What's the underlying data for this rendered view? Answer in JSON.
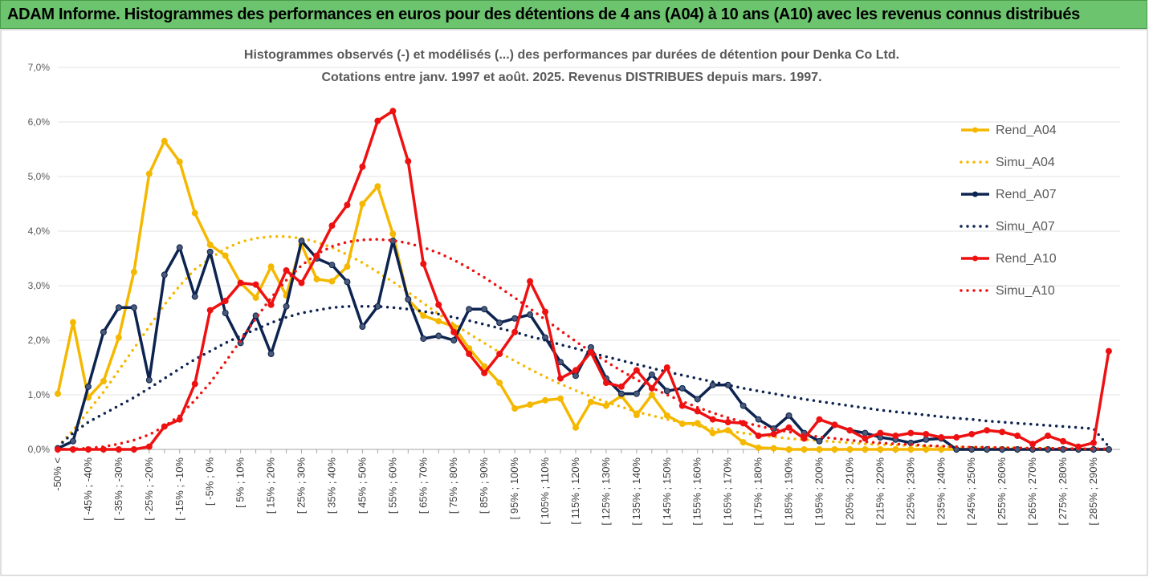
{
  "chart_data": {
    "type": "line",
    "title": "ADAM Informe. Histogrammes des performances en euros pour des détentions de 4 ans (A04) à 10 ans (A10) avec les revenus connus distribués",
    "subtitle": [
      "Histogrammes observés (-) et modélisés (...) des performances par durées de détention pour Denka Co Ltd.",
      "Cotations entre janv. 1997 et août. 2025. Revenus DISTRIBUES depuis mars. 1997."
    ],
    "categories": [
      "-50% <",
      null,
      "[ -45% ; -40%",
      null,
      "[ -35% ; -30%",
      null,
      "[ -25% ; -20%",
      null,
      "[ -15% ; -10%",
      null,
      "[ -5% ; 0%",
      null,
      "[ 5% ; 10%",
      null,
      "[ 15% ; 20%",
      null,
      "[ 25% ; 30%",
      null,
      "[ 35% ; 40%",
      null,
      "[ 45% ; 50%",
      null,
      "[ 55% ; 60%",
      null,
      "[ 65% ; 70%",
      null,
      "[ 75% ; 80%",
      null,
      "[ 85% ; 90%",
      null,
      "[ 95% ; 100%",
      null,
      "[ 105% ; 110%",
      null,
      "[ 115% ; 120%",
      null,
      "[ 125% ; 130%",
      null,
      "[ 135% ; 140%",
      null,
      "[ 145% ; 150%",
      null,
      "[ 155% ; 160%",
      null,
      "[ 165% ; 170%",
      null,
      "[ 175% ; 180%",
      null,
      "[ 185% ; 190%",
      null,
      "[ 195% ; 200%",
      null,
      "[ 205% ; 210%",
      null,
      "[ 215% ; 220%",
      null,
      "[ 225% ; 230%",
      null,
      "[ 235% ; 240%",
      null,
      "[ 245% ; 250%",
      null,
      "[ 255% ; 260%",
      null,
      "[ 265% ; 270%",
      null,
      "[ 275% ; 280%",
      null,
      "[ 285% ; 290%",
      null
    ],
    "ylim": [
      0,
      7
    ],
    "yticks": [
      {
        "value": 0,
        "label": "0,0%"
      },
      {
        "value": 1,
        "label": "1,0%"
      },
      {
        "value": 2,
        "label": "2,0%"
      },
      {
        "value": 3,
        "label": "3,0%"
      },
      {
        "value": 4,
        "label": "4,0%"
      },
      {
        "value": 5,
        "label": "5,0%"
      },
      {
        "value": 6,
        "label": "6,0%"
      },
      {
        "value": 7,
        "label": "7,0%"
      }
    ],
    "grid": true,
    "legend": "right",
    "series": [
      {
        "name": "Rend_A04",
        "color": "#f5b800",
        "style": "solid",
        "markers": true,
        "values": [
          1.02,
          2.33,
          0.95,
          1.25,
          2.05,
          3.25,
          5.05,
          5.65,
          5.27,
          4.33,
          3.75,
          3.55,
          3.05,
          2.78,
          3.35,
          2.82,
          3.75,
          3.12,
          3.08,
          3.35,
          4.5,
          4.82,
          3.95,
          2.75,
          2.45,
          2.35,
          2.25,
          1.85,
          1.52,
          1.22,
          0.75,
          0.82,
          0.9,
          0.93,
          0.4,
          0.87,
          0.8,
          0.98,
          0.63,
          1.0,
          0.62,
          0.47,
          0.48,
          0.3,
          0.35,
          0.13,
          0.03,
          0.02,
          0,
          0,
          0,
          0,
          0,
          0,
          0,
          0,
          0,
          0,
          0,
          0,
          0,
          0,
          0,
          0,
          0,
          0,
          0,
          0,
          0,
          0
        ]
      },
      {
        "name": "Simu_A04",
        "color": "#f5b800",
        "style": "dotted",
        "markers": false,
        "values": [
          0.05,
          0.35,
          0.7,
          1.05,
          1.45,
          1.85,
          2.25,
          2.65,
          3.0,
          3.3,
          3.5,
          3.68,
          3.8,
          3.87,
          3.9,
          3.9,
          3.87,
          3.8,
          3.7,
          3.57,
          3.42,
          3.25,
          3.07,
          2.88,
          2.68,
          2.48,
          2.3,
          2.12,
          1.95,
          1.78,
          1.62,
          1.47,
          1.33,
          1.2,
          1.08,
          0.97,
          0.87,
          0.78,
          0.69,
          0.62,
          0.55,
          0.49,
          0.43,
          0.38,
          0.34,
          0.3,
          0.26,
          0.23,
          0.2,
          0.18,
          0.16,
          0.14,
          0.12,
          0.1,
          0.09,
          0.08,
          0.07,
          0.06,
          0.05,
          0.04,
          0.04,
          0.03,
          0.03,
          0.02,
          0.02,
          0.02,
          0.01,
          0.01,
          0.01,
          0
        ]
      },
      {
        "name": "Rend_A07",
        "color": "#0d2350",
        "style": "solid",
        "markers": true,
        "values": [
          0.02,
          0.15,
          1.15,
          2.15,
          2.6,
          2.6,
          1.27,
          3.2,
          3.7,
          2.8,
          3.62,
          2.5,
          1.95,
          2.45,
          1.75,
          2.62,
          3.82,
          3.5,
          3.38,
          3.07,
          2.25,
          2.62,
          3.82,
          2.75,
          2.03,
          2.08,
          2.0,
          2.57,
          2.57,
          2.32,
          2.4,
          2.47,
          2.05,
          1.6,
          1.35,
          1.87,
          1.3,
          1.02,
          1.02,
          1.37,
          1.07,
          1.12,
          0.92,
          1.18,
          1.18,
          0.8,
          0.55,
          0.38,
          0.62,
          0.3,
          0.15,
          0.45,
          0.35,
          0.3,
          0.22,
          0.18,
          0.12,
          0.18,
          0.2,
          0,
          0,
          0,
          0,
          0,
          0,
          0,
          0,
          0,
          0,
          0
        ]
      },
      {
        "name": "Simu_A07",
        "color": "#0d2350",
        "style": "dotted",
        "markers": false,
        "values": [
          0.05,
          0.3,
          0.5,
          0.65,
          0.8,
          0.95,
          1.12,
          1.3,
          1.48,
          1.65,
          1.8,
          1.95,
          2.08,
          2.2,
          2.32,
          2.42,
          2.5,
          2.55,
          2.6,
          2.62,
          2.62,
          2.62,
          2.6,
          2.57,
          2.53,
          2.48,
          2.42,
          2.36,
          2.29,
          2.22,
          2.15,
          2.07,
          2.0,
          1.92,
          1.85,
          1.77,
          1.7,
          1.63,
          1.56,
          1.49,
          1.42,
          1.36,
          1.3,
          1.24,
          1.18,
          1.12,
          1.07,
          1.02,
          0.97,
          0.92,
          0.88,
          0.84,
          0.8,
          0.76,
          0.72,
          0.69,
          0.66,
          0.63,
          0.6,
          0.57,
          0.55,
          0.52,
          0.5,
          0.48,
          0.46,
          0.44,
          0.42,
          0.4,
          0.38,
          0.05
        ]
      },
      {
        "name": "Rend_A10",
        "color": "#ee1111",
        "style": "solid",
        "markers": true,
        "values": [
          0,
          0,
          0,
          0,
          0,
          0,
          0.05,
          0.42,
          0.55,
          1.2,
          2.55,
          2.72,
          3.05,
          3.02,
          2.65,
          3.28,
          3.05,
          3.55,
          4.1,
          4.48,
          5.18,
          6.02,
          6.2,
          5.28,
          3.4,
          2.65,
          2.15,
          1.75,
          1.4,
          1.75,
          2.15,
          3.08,
          2.52,
          1.3,
          1.45,
          1.78,
          1.22,
          1.15,
          1.45,
          1.12,
          1.5,
          0.8,
          0.7,
          0.55,
          0.5,
          0.48,
          0.25,
          0.28,
          0.4,
          0.2,
          0.55,
          0.45,
          0.35,
          0.2,
          0.3,
          0.25,
          0.3,
          0.28,
          0.22,
          0.22,
          0.28,
          0.35,
          0.32,
          0.25,
          0.1,
          0.25,
          0.15,
          0.05,
          0.12,
          1.8
        ]
      },
      {
        "name": "Simu_A10",
        "color": "#ee1111",
        "style": "dotted",
        "markers": false,
        "values": [
          0,
          0.01,
          0.02,
          0.05,
          0.1,
          0.17,
          0.27,
          0.42,
          0.62,
          0.9,
          1.22,
          1.6,
          2.0,
          2.4,
          2.78,
          3.1,
          3.37,
          3.58,
          3.72,
          3.8,
          3.84,
          3.85,
          3.83,
          3.78,
          3.7,
          3.6,
          3.47,
          3.32,
          3.15,
          2.97,
          2.78,
          2.58,
          2.38,
          2.18,
          1.98,
          1.79,
          1.61,
          1.44,
          1.28,
          1.13,
          1.0,
          0.88,
          0.77,
          0.67,
          0.58,
          0.5,
          0.43,
          0.37,
          0.32,
          0.27,
          0.23,
          0.2,
          0.17,
          0.14,
          0.12,
          0.1,
          0.09,
          0.07,
          0.06,
          0.05,
          0.04,
          0.04,
          0.03,
          0.03,
          0.02,
          0.02,
          0.02,
          0.01,
          0.01,
          0.01
        ]
      }
    ]
  }
}
